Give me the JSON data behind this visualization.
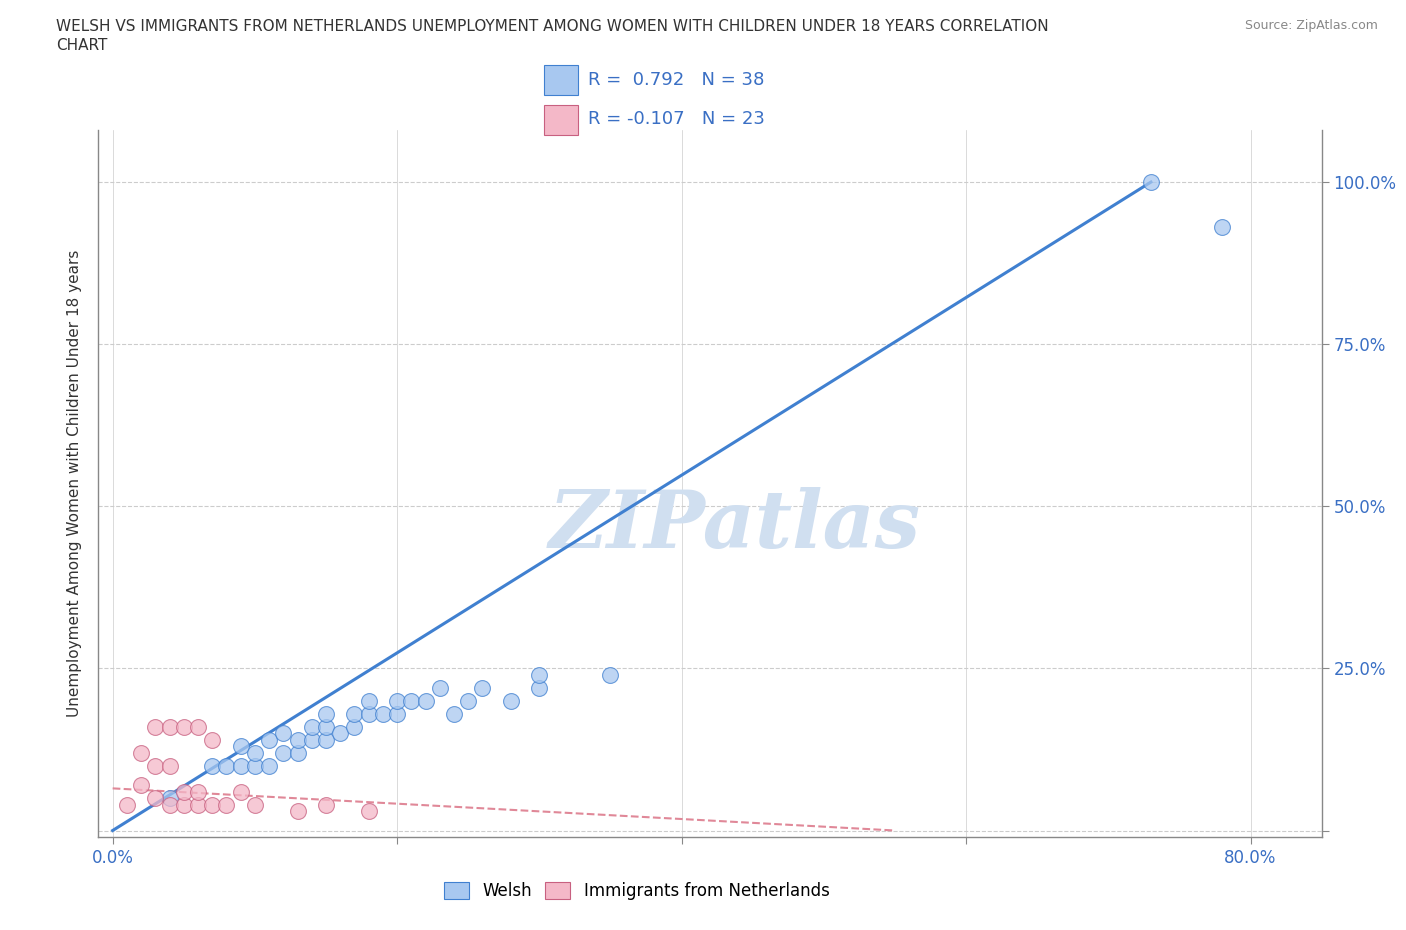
{
  "title": "WELSH VS IMMIGRANTS FROM NETHERLANDS UNEMPLOYMENT AMONG WOMEN WITH CHILDREN UNDER 18 YEARS CORRELATION\nCHART",
  "source": "Source: ZipAtlas.com",
  "ylabel": "Unemployment Among Women with Children Under 18 years",
  "x_ticks": [
    0.0,
    0.2,
    0.4,
    0.6,
    0.8
  ],
  "x_tick_labels": [
    "0.0%",
    "",
    "",
    "",
    "80.0%"
  ],
  "y_ticks": [
    0.0,
    0.25,
    0.5,
    0.75,
    1.0
  ],
  "y_tick_labels": [
    "",
    "25.0%",
    "50.0%",
    "75.0%",
    "100.0%"
  ],
  "xlim": [
    -0.01,
    0.85
  ],
  "ylim": [
    -0.01,
    1.08
  ],
  "welsh_R": 0.792,
  "welsh_N": 38,
  "netherlands_R": -0.107,
  "netherlands_N": 23,
  "welsh_color": "#a8c8f0",
  "netherlands_color": "#f4b8c8",
  "trend_welsh_color": "#4080d0",
  "trend_netherlands_color": "#e08898",
  "watermark": "ZIPatlas",
  "watermark_color": "#d0dff0",
  "legend_label_welsh": "Welsh",
  "legend_label_netherlands": "Immigrants from Netherlands",
  "welsh_x": [
    0.04,
    0.07,
    0.08,
    0.09,
    0.09,
    0.1,
    0.1,
    0.11,
    0.11,
    0.12,
    0.12,
    0.13,
    0.13,
    0.14,
    0.14,
    0.15,
    0.15,
    0.15,
    0.16,
    0.17,
    0.17,
    0.18,
    0.18,
    0.19,
    0.2,
    0.2,
    0.21,
    0.22,
    0.23,
    0.24,
    0.25,
    0.26,
    0.28,
    0.3,
    0.3,
    0.35,
    0.73,
    0.78
  ],
  "welsh_y": [
    0.05,
    0.1,
    0.1,
    0.1,
    0.13,
    0.1,
    0.12,
    0.1,
    0.14,
    0.12,
    0.15,
    0.12,
    0.14,
    0.14,
    0.16,
    0.14,
    0.16,
    0.18,
    0.15,
    0.16,
    0.18,
    0.18,
    0.2,
    0.18,
    0.18,
    0.2,
    0.2,
    0.2,
    0.22,
    0.18,
    0.2,
    0.22,
    0.2,
    0.22,
    0.24,
    0.24,
    1.0,
    0.93
  ],
  "netherlands_x": [
    0.01,
    0.02,
    0.02,
    0.03,
    0.03,
    0.03,
    0.04,
    0.04,
    0.04,
    0.05,
    0.05,
    0.05,
    0.06,
    0.06,
    0.06,
    0.07,
    0.07,
    0.08,
    0.09,
    0.1,
    0.13,
    0.15,
    0.18
  ],
  "netherlands_y": [
    0.04,
    0.07,
    0.12,
    0.05,
    0.1,
    0.16,
    0.04,
    0.1,
    0.16,
    0.04,
    0.06,
    0.16,
    0.04,
    0.06,
    0.16,
    0.04,
    0.14,
    0.04,
    0.06,
    0.04,
    0.03,
    0.04,
    0.03
  ],
  "trend_welsh_x0": 0.0,
  "trend_welsh_x1": 0.73,
  "trend_welsh_y0": 0.0,
  "trend_welsh_y1": 1.0,
  "trend_neth_x0": 0.0,
  "trend_neth_x1": 0.55,
  "trend_neth_y0": 0.065,
  "trend_neth_y1": 0.0
}
